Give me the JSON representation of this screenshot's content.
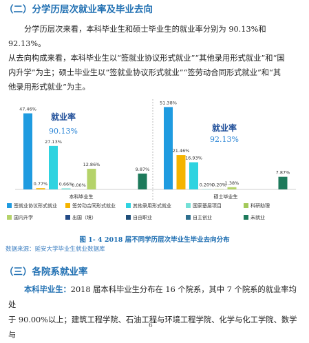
{
  "section1": {
    "heading": "（二）分学历层次就业率及毕业去向"
  },
  "paragraph1": {
    "line1": "分学历层次来看，本科毕业生和硕士毕业生的就业率分别为 90.13%和 92.13%。",
    "line2": "从去向构成来看，本科毕业生以“签就业协议形式就业”“其他录用形式就业”和“国",
    "line3": "内升学”为主；硕士毕业生以“签就业协议形式就业”“签劳动合同形式就业”和“其",
    "line4": "他录用形式就业”为主。"
  },
  "figure": {
    "caption": "图 1- 4    2018 届不同学历层次毕业生毕业去向分布",
    "source": "数据来源：延安大学毕业生就业数据库"
  },
  "chart_data": {
    "type": "bar",
    "groups": [
      "本科毕业生",
      "硕士毕业生"
    ],
    "series": [
      {
        "name": "签就业协议形式就业",
        "color": "#1f9be0",
        "values": [
          47.46,
          51.38
        ],
        "labels": [
          "47.46%",
          "51.38%"
        ]
      },
      {
        "name": "签劳动合同形式就业",
        "color": "#f5b400",
        "values": [
          0.77,
          21.46
        ],
        "labels": [
          "0.77%",
          "21.46%"
        ]
      },
      {
        "name": "其他录用形式就业",
        "color": "#2ed3e0",
        "values": [
          27.13,
          16.93
        ],
        "labels": [
          "27.13%",
          "16.93%"
        ]
      },
      {
        "name": "国家基层项目",
        "color": "#74e0d6",
        "values": [
          0.66,
          0.2
        ],
        "labels": [
          "0.66%",
          "0.20%"
        ]
      },
      {
        "name": "科研助理",
        "color": "#a3c95a",
        "values": [
          0.0,
          0.2
        ],
        "labels": [
          "0.00%",
          "0.20%"
        ]
      },
      {
        "name": "国内升学",
        "color": "#b5d36a",
        "values": [
          12.86,
          1.38
        ],
        "labels": [
          "12.86%",
          "1.38%"
        ]
      },
      {
        "name": "出国（境）",
        "color": "#244b86",
        "values": [
          0.0,
          0.0
        ],
        "labels": [
          "",
          ""
        ]
      },
      {
        "name": "自由职业",
        "color": "#1f4e79",
        "values": [
          0.0,
          0.0
        ],
        "labels": [
          "",
          ""
        ]
      },
      {
        "name": "自主创业",
        "color": "#2e6f8e",
        "values": [
          0.0,
          0.0
        ],
        "labels": [
          "",
          ""
        ]
      },
      {
        "name": "未就业",
        "color": "#1d7a5b",
        "values": [
          9.87,
          7.87
        ],
        "labels": [
          "9.87%",
          "7.87%"
        ]
      }
    ],
    "annotations": [
      {
        "group": "本科毕业生",
        "title": "就业率",
        "value": "90.13%"
      },
      {
        "group": "硕士毕业生",
        "title": "就业率",
        "value": "92.13%"
      }
    ],
    "ylim": [
      0,
      55
    ],
    "legend": "bottom"
  },
  "section2": {
    "heading": "（三）各院系就业率"
  },
  "paragraph2": {
    "lead": "本科毕业生：",
    "line1": "2018 届本科毕业生分布在 16 个院系，其中 7 个院系的就业率均处",
    "line2": "于 90.00%以上；建筑工程学院、石油工程与环境工程学院、化学与化工学院、数学与"
  },
  "page": {
    "number": "6"
  }
}
